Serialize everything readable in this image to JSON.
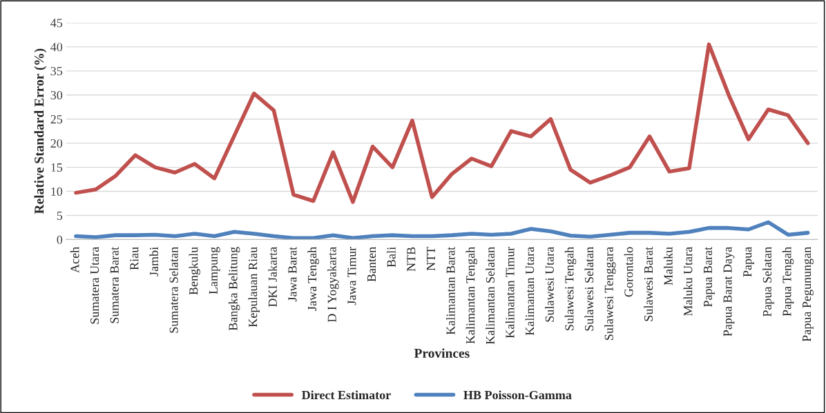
{
  "chart_data": {
    "type": "line",
    "xlabel": "Provinces",
    "ylabel": "Relative Standard Error (%)",
    "categories": [
      "Aceh",
      "Sumatera Utara",
      "Sumatera Barat",
      "Riau",
      "Jambi",
      "Sumatera Selatan",
      "Bengkulu",
      "Lampung",
      "Bangka Belitung",
      "Kepulauan Riau",
      "DKI Jakarta",
      "Jawa Barat",
      "Jawa Tengah",
      "D I Yogyakarta",
      "Jawa Timur",
      "Banten",
      "Bali",
      "NTB",
      "NTT",
      "Kalimantan Barat",
      "Kalimantan Tengah",
      "Kalimantan Selatan",
      "Kalimantan Timur",
      "Kalimantan Utara",
      "Sulawesi Utara",
      "Sulawesi Tengah",
      "Sulawesi Selatan",
      "Sulawesi Tenggara",
      "Gorontalo",
      "Sulawesi Barat",
      "Maluku",
      "Maluku Utara",
      "Papua Barat",
      "Papua Barat Daya",
      "Papua",
      "Papua Selatan",
      "Papua Tengah",
      "Papua Pegunungan"
    ],
    "series": [
      {
        "name": "Direct Estimator",
        "color": "#c0504d",
        "values": [
          9.7,
          10.4,
          13.2,
          17.5,
          15.0,
          13.9,
          15.7,
          12.7,
          21.5,
          30.3,
          26.8,
          9.3,
          8.0,
          18.1,
          7.8,
          19.3,
          15.0,
          24.7,
          8.8,
          13.6,
          16.8,
          15.2,
          22.5,
          21.4,
          25.0,
          14.5,
          11.8,
          13.3,
          15.0,
          21.4,
          14.1,
          14.8,
          40.5,
          30.0,
          20.8,
          27.0,
          25.8,
          20.0
        ]
      },
      {
        "name": "HB Poisson-Gamma",
        "color": "#4f81bd",
        "values": [
          0.7,
          0.5,
          0.9,
          0.9,
          1.0,
          0.7,
          1.2,
          0.7,
          1.6,
          1.2,
          0.7,
          0.3,
          0.3,
          0.9,
          0.3,
          0.7,
          0.9,
          0.7,
          0.7,
          0.9,
          1.2,
          1.0,
          1.2,
          2.2,
          1.7,
          0.8,
          0.6,
          1.0,
          1.4,
          1.4,
          1.2,
          1.6,
          2.4,
          2.4,
          2.1,
          3.6,
          1.0,
          1.4
        ]
      }
    ],
    "ylim": [
      0,
      45
    ],
    "yticks": [
      0,
      5,
      10,
      15,
      20,
      25,
      30,
      35,
      40,
      45
    ],
    "grid": "y",
    "legend": "bottom",
    "marker": "none",
    "line_style": "solid"
  }
}
